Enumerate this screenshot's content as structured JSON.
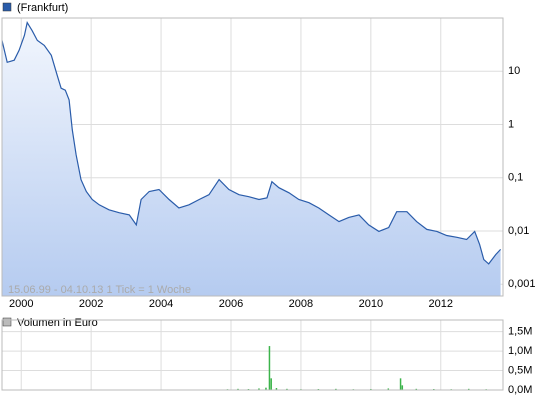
{
  "chart_data": [
    {
      "type": "line",
      "log_scale": true,
      "grid": true,
      "annotation": "15.06.99 - 04.10.13   1 Tick = 1 Woche",
      "xlim": [
        1999.45,
        2013.78
      ],
      "xticks": [
        2000,
        2002,
        2004,
        2006,
        2008,
        2010,
        2012
      ],
      "ylim": [
        0.0006,
        100
      ],
      "yticks": [
        {
          "value": 0.001,
          "label": "0,001"
        },
        {
          "value": 0.01,
          "label": "0,01"
        },
        {
          "value": 0.1,
          "label": "0,1"
        },
        1,
        10
      ],
      "series": [
        {
          "name": "(Frankfurt)",
          "color": "#2a5caa",
          "x": [
            1999.45,
            1999.6,
            1999.8,
            1999.94,
            2000.09,
            2000.17,
            2000.31,
            2000.46,
            2000.66,
            2000.86,
            2001.03,
            2001.14,
            2001.26,
            2001.37,
            2001.46,
            2001.57,
            2001.71,
            2001.86,
            2002.03,
            2002.23,
            2002.51,
            2002.8,
            2003.09,
            2003.29,
            2003.43,
            2003.66,
            2003.94,
            2004.23,
            2004.51,
            2004.8,
            2005.09,
            2005.37,
            2005.66,
            2005.94,
            2006.23,
            2006.51,
            2006.8,
            2007.03,
            2007.17,
            2007.37,
            2007.66,
            2007.94,
            2008.23,
            2008.51,
            2008.8,
            2009.09,
            2009.37,
            2009.66,
            2009.94,
            2010.23,
            2010.51,
            2010.74,
            2011.03,
            2011.31,
            2011.6,
            2011.89,
            2012.17,
            2012.46,
            2012.74,
            2012.97,
            2013.11,
            2013.23,
            2013.37,
            2013.57,
            2013.71
          ],
          "values": [
            37.9,
            14.7,
            16.1,
            24.7,
            47,
            82,
            58,
            37.9,
            30.6,
            19.9,
            8.4,
            4.8,
            4.4,
            2.9,
            0.79,
            0.27,
            0.092,
            0.055,
            0.039,
            0.031,
            0.025,
            0.022,
            0.02,
            0.013,
            0.039,
            0.055,
            0.06,
            0.039,
            0.027,
            0.031,
            0.039,
            0.048,
            0.092,
            0.06,
            0.048,
            0.044,
            0.039,
            0.042,
            0.084,
            0.065,
            0.052,
            0.039,
            0.034,
            0.027,
            0.02,
            0.015,
            0.018,
            0.02,
            0.013,
            0.0098,
            0.0116,
            0.023,
            0.023,
            0.015,
            0.0107,
            0.0098,
            0.0082,
            0.0076,
            0.0069,
            0.0098,
            0.0056,
            0.0029,
            0.0024,
            0.0036,
            0.0045
          ]
        }
      ]
    },
    {
      "type": "bar",
      "grid": true,
      "xlim": [
        1999.45,
        2013.78
      ],
      "xticks": [
        2000,
        2002,
        2004,
        2006,
        2008,
        2010,
        2012
      ],
      "ylim": [
        0,
        1800000
      ],
      "yticks": [
        {
          "value": 0,
          "label": "0,0M"
        },
        {
          "value": 500000,
          "label": "0,5M"
        },
        {
          "value": 1000000,
          "label": "1,0M"
        },
        {
          "value": 1500000,
          "label": "1,5M"
        }
      ],
      "series": [
        {
          "name": "Volumen in Euro",
          "color": "#3cb44b",
          "x": [
            2005.9,
            2006.2,
            2006.5,
            2006.8,
            2007.0,
            2007.1,
            2007.15,
            2007.3,
            2007.6,
            2008.0,
            2008.5,
            2009.0,
            2009.5,
            2010.0,
            2010.5,
            2010.85,
            2010.9,
            2011.3,
            2011.8,
            2012.3,
            2012.8,
            2013.3
          ],
          "values": [
            20000,
            30000,
            25000,
            40000,
            60000,
            1130000,
            300000,
            50000,
            30000,
            20000,
            25000,
            30000,
            20000,
            25000,
            40000,
            300000,
            120000,
            30000,
            25000,
            20000,
            30000,
            20000
          ]
        }
      ]
    }
  ]
}
